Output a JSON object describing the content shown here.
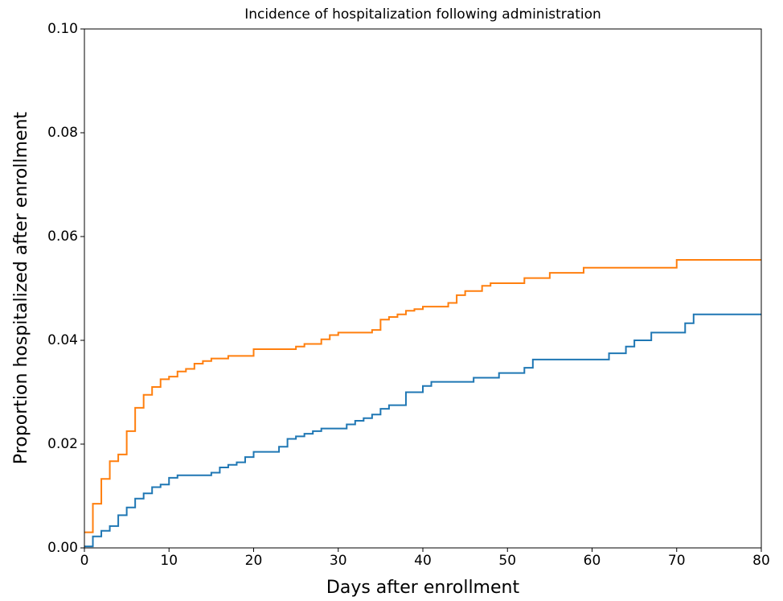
{
  "chart_data": {
    "type": "step",
    "title": "Incidence of hospitalization following administration",
    "xlabel": "Days after enrollment",
    "ylabel": "Proportion hospitalized after enrollment",
    "xlim": [
      0,
      80
    ],
    "ylim": [
      0,
      0.1
    ],
    "xticks": [
      0,
      10,
      20,
      30,
      40,
      50,
      60,
      70,
      80
    ],
    "yticks": [
      {
        "value": 0,
        "label": "0.00"
      },
      {
        "value": 0.02,
        "label": "0.02"
      },
      {
        "value": 0.04,
        "label": "0.04"
      },
      {
        "value": 0.06,
        "label": "0.06"
      },
      {
        "value": 0.08,
        "label": "0.08"
      },
      {
        "value": 0.1,
        "label": "0.10"
      }
    ],
    "grid": false,
    "series": [
      {
        "color": "#ff7f0e",
        "x": [
          0,
          1,
          2,
          3,
          4,
          5,
          6,
          7,
          8,
          9,
          10,
          11,
          12,
          13,
          14,
          15,
          17,
          20,
          25,
          26,
          28,
          29,
          30,
          34,
          35,
          36,
          37,
          38,
          39,
          40,
          43,
          44,
          45,
          47,
          48,
          52,
          55,
          59,
          70,
          80
        ],
        "values": [
          0.003,
          0.0085,
          0.0133,
          0.0167,
          0.018,
          0.0225,
          0.027,
          0.0295,
          0.031,
          0.0325,
          0.033,
          0.034,
          0.0345,
          0.0355,
          0.036,
          0.0365,
          0.037,
          0.0383,
          0.0388,
          0.0393,
          0.0402,
          0.041,
          0.0415,
          0.042,
          0.044,
          0.0445,
          0.045,
          0.0457,
          0.046,
          0.0465,
          0.0472,
          0.0487,
          0.0495,
          0.0505,
          0.051,
          0.052,
          0.053,
          0.054,
          0.0555,
          0.0555
        ]
      },
      {
        "color": "#1f77b4",
        "x": [
          0,
          1,
          2,
          3,
          4,
          5,
          6,
          7,
          8,
          9,
          10,
          11,
          15,
          16,
          17,
          18,
          19,
          20,
          23,
          24,
          25,
          26,
          27,
          28,
          31,
          32,
          33,
          34,
          35,
          36,
          38,
          40,
          41,
          46,
          49,
          52,
          53,
          62,
          64,
          65,
          67,
          71,
          72,
          80
        ],
        "values": [
          0.0003,
          0.0022,
          0.0033,
          0.0042,
          0.0063,
          0.0078,
          0.0095,
          0.0105,
          0.0117,
          0.0122,
          0.0135,
          0.014,
          0.0145,
          0.0155,
          0.016,
          0.0165,
          0.0175,
          0.0185,
          0.0195,
          0.021,
          0.0215,
          0.022,
          0.0225,
          0.023,
          0.0238,
          0.0245,
          0.025,
          0.0257,
          0.0268,
          0.0275,
          0.03,
          0.0312,
          0.032,
          0.0328,
          0.0337,
          0.0347,
          0.0363,
          0.0375,
          0.0388,
          0.04,
          0.0415,
          0.0433,
          0.045,
          0.045
        ]
      }
    ]
  }
}
